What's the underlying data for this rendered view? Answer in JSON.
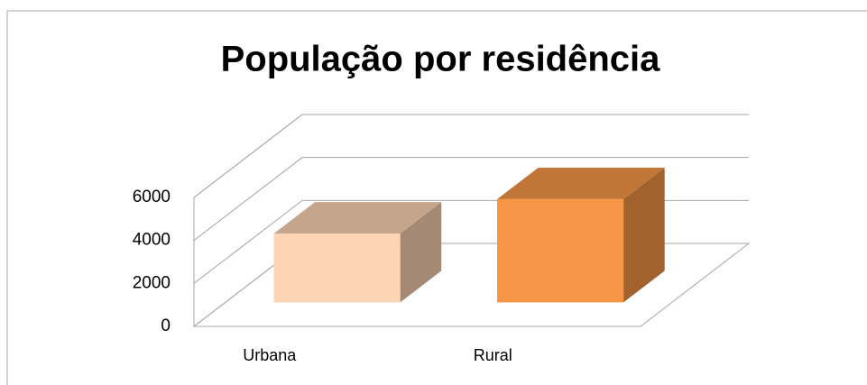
{
  "chart_data": {
    "type": "bar3d",
    "title": "População por residência",
    "categories": [
      "Urbana",
      "Rural"
    ],
    "values": [
      3200,
      4800
    ],
    "colors": [
      "#fdd5b4",
      "#f79646"
    ],
    "ylim": [
      0,
      6000
    ],
    "yticks": [
      0,
      2000,
      4000,
      6000
    ],
    "grid": true
  }
}
